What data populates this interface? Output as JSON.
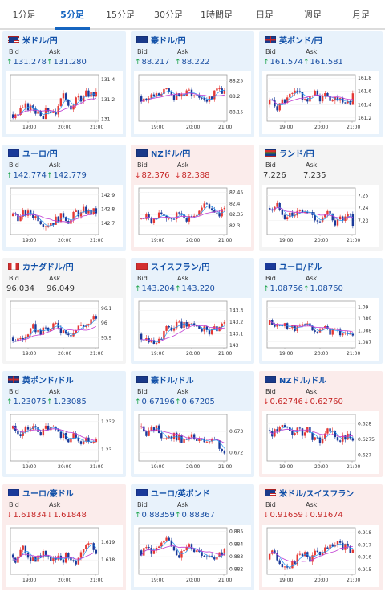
{
  "tabs": [
    {
      "label": "1分足",
      "active": false
    },
    {
      "label": "5分足",
      "active": true
    },
    {
      "label": "15分足",
      "active": false
    },
    {
      "label": "30分足",
      "active": false
    },
    {
      "label": "1時間足",
      "active": false
    },
    {
      "label": "日足",
      "active": false
    },
    {
      "label": "週足",
      "active": false
    },
    {
      "label": "月足",
      "active": false
    }
  ],
  "labels": {
    "bid": "Bid",
    "ask": "Ask"
  },
  "colors": {
    "up_text": "#1a4fa3",
    "down_text": "#c62828",
    "candle_up": "#e53935",
    "candle_down": "#1a3a9a",
    "ma_short": "#2196f3",
    "ma_long": "#c03bd1",
    "card_up_bg": "#e8f2fb",
    "card_down_bg": "#fbeceb"
  },
  "pairs": [
    {
      "name": "米ドル/円",
      "flag": "us",
      "bid": "131.278",
      "ask": "131.280",
      "trend": "up",
      "chart_data": {
        "type": "candlestick",
        "x_ticks": [
          "19:00",
          "20:00",
          "21:00"
        ],
        "y_ticks": [
          "131.4",
          "131.2",
          "131"
        ],
        "ylim": [
          130.98,
          131.45
        ],
        "open": 131.05,
        "close": 131.28,
        "high": 131.42,
        "low": 131.0
      }
    },
    {
      "name": "豪ドル/円",
      "flag": "au",
      "bid": "88.217",
      "ask": "88.222",
      "trend": "up",
      "chart_data": {
        "type": "candlestick",
        "x_ticks": [
          "19:00",
          "20:00",
          "21:00"
        ],
        "y_ticks": [
          "88.25",
          "88.2",
          "88.15"
        ],
        "ylim": [
          88.12,
          88.27
        ],
        "open": 88.2,
        "close": 88.22,
        "high": 88.26,
        "low": 88.14
      }
    },
    {
      "name": "英ポンド/円",
      "flag": "gb",
      "bid": "161.574",
      "ask": "161.581",
      "trend": "up",
      "chart_data": {
        "type": "candlestick",
        "x_ticks": [
          "19:00",
          "20:00",
          "21:00"
        ],
        "y_ticks": [
          "161.8",
          "161.6",
          "161.4",
          "161.2"
        ],
        "ylim": [
          161.15,
          161.85
        ],
        "open": 161.4,
        "close": 161.57,
        "high": 161.82,
        "low": 161.2
      }
    },
    {
      "name": "ユーロ/円",
      "flag": "eu",
      "bid": "142.774",
      "ask": "142.779",
      "trend": "up",
      "chart_data": {
        "type": "candlestick",
        "x_ticks": [
          "19:00",
          "20:00",
          "21:00"
        ],
        "y_ticks": [
          "142.9",
          "142.8",
          "142.7"
        ],
        "ylim": [
          142.62,
          142.95
        ],
        "open": 142.75,
        "close": 142.77,
        "high": 142.93,
        "low": 142.65
      }
    },
    {
      "name": "NZドル/円",
      "flag": "nz",
      "bid": "82.376",
      "ask": "82.388",
      "trend": "down",
      "chart_data": {
        "type": "candlestick",
        "x_ticks": [
          "19:00",
          "20:00",
          "21:00"
        ],
        "y_ticks": [
          "82.45",
          "82.4",
          "82.35",
          "82.3"
        ],
        "ylim": [
          82.26,
          82.47
        ],
        "open": 82.33,
        "close": 82.38,
        "high": 82.45,
        "low": 82.28
      }
    },
    {
      "name": "ランド/円",
      "flag": "za",
      "bid": "7.226",
      "ask": "7.235",
      "trend": "flat",
      "chart_data": {
        "type": "candlestick",
        "x_ticks": [
          "19:00",
          "20:00",
          "21:00"
        ],
        "y_ticks": [
          "7.25",
          "7.24",
          "7.23"
        ],
        "ylim": [
          7.219,
          7.256
        ],
        "open": 7.24,
        "close": 7.226,
        "high": 7.254,
        "low": 7.222
      }
    },
    {
      "name": "カナダドル/円",
      "flag": "ca",
      "bid": "96.034",
      "ask": "96.049",
      "trend": "flat",
      "chart_data": {
        "type": "candlestick",
        "x_ticks": [
          "19:00",
          "20:00",
          "21:00"
        ],
        "y_ticks": [
          "96.1",
          "96",
          "95.9"
        ],
        "ylim": [
          95.83,
          96.15
        ],
        "open": 95.9,
        "close": 96.03,
        "high": 96.12,
        "low": 95.86
      }
    },
    {
      "name": "スイスフラン/円",
      "flag": "ch",
      "bid": "143.204",
      "ask": "143.220",
      "trend": "up",
      "chart_data": {
        "type": "candlestick",
        "x_ticks": [
          "19:00",
          "20:00",
          "21:00"
        ],
        "y_ticks": [
          "143.3",
          "143.2",
          "143.1",
          "143"
        ],
        "ylim": [
          142.98,
          143.38
        ],
        "open": 143.1,
        "close": 143.2,
        "high": 143.35,
        "low": 143.0
      }
    },
    {
      "name": "ユーロ/ドル",
      "flag": "eu-us",
      "bid": "1.08756",
      "ask": "1.08760",
      "trend": "up",
      "chart_data": {
        "type": "candlestick",
        "x_ticks": [
          "19:00",
          "20:00",
          "21:00"
        ],
        "y_ticks": [
          "1.09",
          "1.089",
          "1.088",
          "1.087"
        ],
        "ylim": [
          1.0865,
          1.0905
        ],
        "open": 1.0885,
        "close": 1.08756,
        "high": 1.0895,
        "low": 1.0868
      }
    },
    {
      "name": "英ポンド/ドル",
      "flag": "gb-us",
      "bid": "1.23075",
      "ask": "1.23085",
      "trend": "up",
      "chart_data": {
        "type": "candlestick",
        "x_ticks": [
          "19:00",
          "20:00",
          "21:00"
        ],
        "y_ticks": [
          "1.232",
          "1.23"
        ],
        "ylim": [
          1.2292,
          1.2325
        ],
        "open": 1.2315,
        "close": 1.23075,
        "high": 1.2322,
        "low": 1.2295
      }
    },
    {
      "name": "豪ドル/ドル",
      "flag": "au-us",
      "bid": "0.67196",
      "ask": "0.67205",
      "trend": "up",
      "chart_data": {
        "type": "candlestick",
        "x_ticks": [
          "19:00",
          "20:00",
          "21:00"
        ],
        "y_ticks": [
          "0.673",
          "0.672"
        ],
        "ylim": [
          0.6716,
          0.6738
        ],
        "open": 0.6732,
        "close": 0.67196,
        "high": 0.6736,
        "low": 0.6718
      }
    },
    {
      "name": "NZドル/ドル",
      "flag": "nz-us",
      "bid": "0.62746",
      "ask": "0.62760",
      "trend": "down",
      "chart_data": {
        "type": "candlestick",
        "x_ticks": [
          "19:00",
          "20:00",
          "21:00"
        ],
        "y_ticks": [
          "0.628",
          "0.6275",
          "0.627"
        ],
        "ylim": [
          0.6268,
          0.6283
        ],
        "open": 0.6278,
        "close": 0.62746,
        "high": 0.6282,
        "low": 0.6269
      }
    },
    {
      "name": "ユーロ/豪ドル",
      "flag": "eu-au",
      "bid": "1.61834",
      "ask": "1.61848",
      "trend": "down",
      "chart_data": {
        "type": "candlestick",
        "x_ticks": [
          "19:00",
          "20:00",
          "21:00"
        ],
        "y_ticks": [
          "1.619",
          "1.618"
        ],
        "ylim": [
          1.6172,
          1.6198
        ],
        "open": 1.6183,
        "close": 1.61834,
        "high": 1.6196,
        "low": 1.6174
      }
    },
    {
      "name": "ユーロ/英ポンド",
      "flag": "eu-gb",
      "bid": "0.88359",
      "ask": "0.88367",
      "trend": "up",
      "chart_data": {
        "type": "candlestick",
        "x_ticks": [
          "19:00",
          "20:00",
          "21:00"
        ],
        "y_ticks": [
          "0.885",
          "0.884",
          "0.883",
          "0.882"
        ],
        "ylim": [
          0.8816,
          0.8853
        ],
        "open": 0.8835,
        "close": 0.88359,
        "high": 0.885,
        "low": 0.8819
      }
    },
    {
      "name": "米ドル/スイスフラン",
      "flag": "us-ch",
      "bid": "0.91659",
      "ask": "0.91674",
      "trend": "down",
      "chart_data": {
        "type": "candlestick",
        "x_ticks": [
          "19:00",
          "20:00",
          "21:00"
        ],
        "y_ticks": [
          "0.918",
          "0.917",
          "0.916",
          "0.915"
        ],
        "ylim": [
          0.9146,
          0.9184
        ],
        "open": 0.9158,
        "close": 0.91659,
        "high": 0.9182,
        "low": 0.9148
      }
    }
  ]
}
